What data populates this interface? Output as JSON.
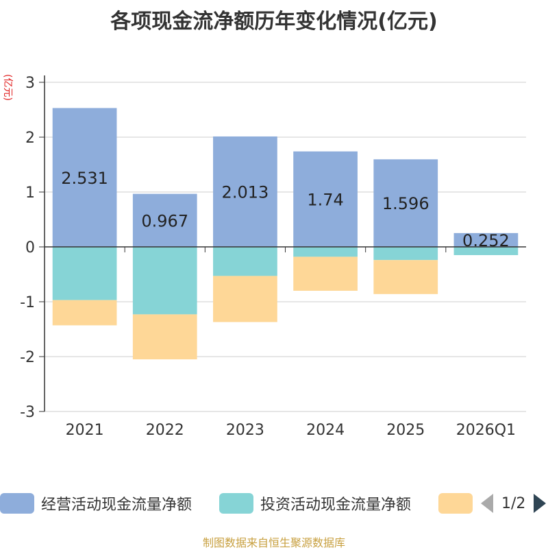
{
  "page": {
    "title": "各项现金流净额历年变化情况(亿元)",
    "source": "制图数据来自恒生聚源数据库"
  },
  "legend": {
    "page_indicator": "1/2"
  },
  "chart_data": {
    "type": "bar",
    "stacked": true,
    "title": "各项现金流净额历年变化情况(亿元)",
    "ylabel": "(亿元)",
    "xlabel": "",
    "ylim": [
      -3,
      3
    ],
    "yticks": [
      3,
      2,
      1,
      0,
      -1,
      -2,
      -3
    ],
    "grid": true,
    "legend_position": "bottom",
    "categories": [
      "2021",
      "2022",
      "2023",
      "2024",
      "2025",
      "2026Q1"
    ],
    "series": [
      {
        "name": "经营活动现金流量净额",
        "color": "#8eaddb",
        "values": [
          2.531,
          0.967,
          2.013,
          1.74,
          1.596,
          0.252
        ],
        "labels": [
          "2.531",
          "0.967",
          "2.013",
          "1.74",
          "1.596",
          "0.252"
        ]
      },
      {
        "name": "投资活动现金流量净额",
        "color": "#86d4d6",
        "values": [
          -0.97,
          -1.23,
          -0.53,
          -0.18,
          -0.24,
          -0.15
        ]
      },
      {
        "name": "",
        "color": "#fed797",
        "values": [
          -0.46,
          -0.82,
          -0.84,
          -0.62,
          -0.62,
          0
        ]
      }
    ]
  }
}
